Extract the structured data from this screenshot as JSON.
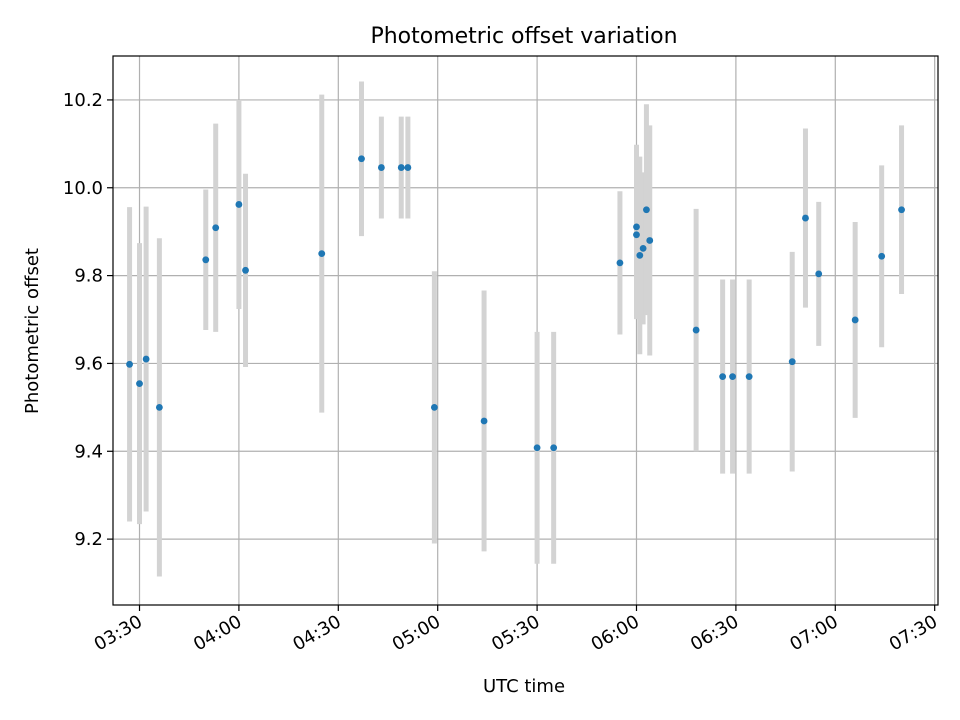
{
  "chart_data": {
    "type": "scatter",
    "title": "Photometric offset variation",
    "xlabel": "UTC time",
    "ylabel": "Photometric offset",
    "x_ticks": [
      "03:30",
      "04:00",
      "04:30",
      "05:00",
      "05:30",
      "06:00",
      "06:30",
      "07:00",
      "07:30"
    ],
    "y_ticks": [
      9.2,
      9.4,
      9.6,
      9.8,
      10.0,
      10.2
    ],
    "xlim": [
      "03:22",
      "07:31"
    ],
    "ylim": [
      9.05,
      10.3
    ],
    "grid": true,
    "errorbar_color": "#d3d3d3",
    "point_color": "#1f77b4",
    "series": [
      {
        "points": [
          {
            "t": "03:27",
            "y": 9.598,
            "err": 0.358
          },
          {
            "t": "03:30",
            "y": 9.554,
            "err": 0.32
          },
          {
            "t": "03:32",
            "y": 9.61,
            "err": 0.347
          },
          {
            "t": "03:36",
            "y": 9.5,
            "err": 0.385
          },
          {
            "t": "03:50",
            "y": 9.836,
            "err": 0.16
          },
          {
            "t": "03:53",
            "y": 9.909,
            "err": 0.237
          },
          {
            "t": "04:00",
            "y": 9.962,
            "err": 0.238
          },
          {
            "t": "04:02",
            "y": 9.812,
            "err": 0.22
          },
          {
            "t": "04:25",
            "y": 9.85,
            "err": 0.362
          },
          {
            "t": "04:37",
            "y": 10.066,
            "err": 0.176
          },
          {
            "t": "04:43",
            "y": 10.046,
            "err": 0.116
          },
          {
            "t": "04:49",
            "y": 10.046,
            "err": 0.116
          },
          {
            "t": "04:51",
            "y": 10.046,
            "err": 0.116
          },
          {
            "t": "04:59",
            "y": 9.5,
            "err": 0.31
          },
          {
            "t": "05:14",
            "y": 9.469,
            "err": 0.297
          },
          {
            "t": "05:30",
            "y": 9.408,
            "err": 0.264
          },
          {
            "t": "05:35",
            "y": 9.408,
            "err": 0.264
          },
          {
            "t": "05:55",
            "y": 9.829,
            "err": 0.163
          },
          {
            "t": "06:00",
            "y": 9.893,
            "err": 0.192
          },
          {
            "t": "06:00",
            "y": 9.911,
            "err": 0.187
          },
          {
            "t": "06:01",
            "y": 9.846,
            "err": 0.225
          },
          {
            "t": "06:02",
            "y": 9.862,
            "err": 0.173
          },
          {
            "t": "06:03",
            "y": 9.95,
            "err": 0.24
          },
          {
            "t": "06:04",
            "y": 9.88,
            "err": 0.262
          },
          {
            "t": "06:18",
            "y": 9.676,
            "err": 0.276
          },
          {
            "t": "06:26",
            "y": 9.57,
            "err": 0.221
          },
          {
            "t": "06:29",
            "y": 9.57,
            "err": 0.221
          },
          {
            "t": "06:34",
            "y": 9.57,
            "err": 0.221
          },
          {
            "t": "06:47",
            "y": 9.604,
            "err": 0.25
          },
          {
            "t": "06:51",
            "y": 9.931,
            "err": 0.204
          },
          {
            "t": "06:55",
            "y": 9.804,
            "err": 0.164
          },
          {
            "t": "07:06",
            "y": 9.699,
            "err": 0.223
          },
          {
            "t": "07:14",
            "y": 9.844,
            "err": 0.207
          },
          {
            "t": "07:20",
            "y": 9.95,
            "err": 0.192
          }
        ]
      }
    ]
  }
}
